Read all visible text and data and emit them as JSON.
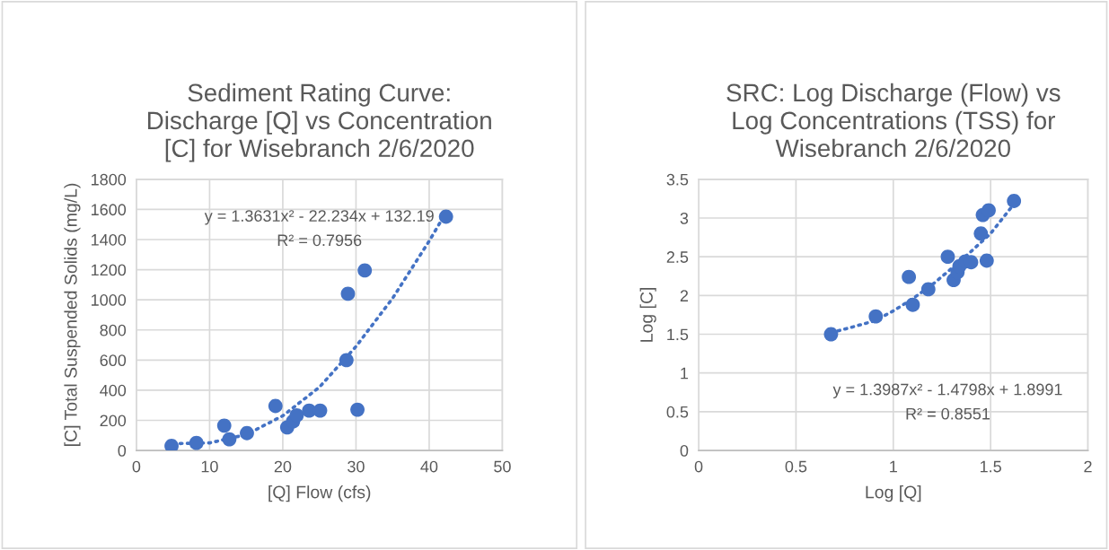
{
  "chart_data": [
    {
      "type": "scatter",
      "title": "Sediment Rating Curve:\nDischarge [Q] vs Concentration\n[C] for Wisebranch 2/6/2020",
      "xlabel": "[Q] Flow (cfs)",
      "ylabel": "[C] Total Suspended Solids (mg/L)",
      "xlim": [
        0,
        50
      ],
      "xticks": [
        0,
        10,
        20,
        30,
        40,
        50
      ],
      "ylim": [
        0,
        1800
      ],
      "yticks": [
        0,
        200,
        400,
        600,
        800,
        1000,
        1200,
        1400,
        1600,
        1800
      ],
      "grid": true,
      "annotations": [
        "y = 1.3631x² - 22.234x + 132.19",
        "R² = 0.7956"
      ],
      "series": [
        {
          "color": "#4472c4",
          "marker": "circle",
          "x": [
            4.8,
            8.2,
            12.0,
            12.7,
            15.1,
            19.0,
            20.6,
            21.4,
            21.9,
            23.6,
            25.1,
            28.7,
            28.9,
            30.2,
            31.2,
            42.3
          ],
          "values": [
            30,
            50,
            165,
            74,
            115,
            295,
            153,
            193,
            233,
            265,
            265,
            600,
            1040,
            271,
            1195,
            1552
          ]
        },
        {
          "type": "line",
          "color": "#4472c4",
          "line_style": "dotted",
          "x": [
            5,
            10,
            15,
            20,
            25,
            30,
            35,
            40,
            42
          ],
          "values": [
            45,
            50,
            105,
            230,
            420,
            690,
            1010,
            1390,
            1555
          ]
        }
      ]
    },
    {
      "type": "scatter",
      "title": "SRC: Log Discharge (Flow) vs\nLog Concentrations (TSS) for\nWisebranch 2/6/2020",
      "xlabel": "Log [Q]",
      "ylabel": "Log [C]",
      "xlim": [
        0,
        2
      ],
      "xticks": [
        0,
        0.5,
        1,
        1.5,
        2
      ],
      "ylim": [
        0,
        3.5
      ],
      "yticks": [
        0,
        0.5,
        1,
        1.5,
        2,
        2.5,
        3,
        3.5
      ],
      "grid": true,
      "annotations": [
        "y = 1.3987x² - 1.4798x + 1.8991",
        "R² = 0.8551"
      ],
      "series": [
        {
          "color": "#4472c4",
          "marker": "circle",
          "x": [
            0.68,
            0.91,
            1.08,
            1.1,
            1.18,
            1.28,
            1.31,
            1.33,
            1.34,
            1.37,
            1.4,
            1.45,
            1.46,
            1.49,
            1.48,
            1.62
          ],
          "values": [
            1.5,
            1.73,
            2.24,
            1.88,
            2.08,
            2.5,
            2.2,
            2.3,
            2.38,
            2.44,
            2.43,
            2.8,
            3.04,
            3.1,
            2.45,
            3.22
          ]
        },
        {
          "type": "line",
          "color": "#4472c4",
          "line_style": "dotted",
          "x": [
            0.68,
            0.8,
            0.9,
            1.0,
            1.1,
            1.2,
            1.3,
            1.4,
            1.5,
            1.62
          ],
          "values": [
            1.52,
            1.6,
            1.67,
            1.8,
            1.96,
            2.14,
            2.35,
            2.57,
            2.8,
            3.18
          ]
        }
      ]
    }
  ]
}
